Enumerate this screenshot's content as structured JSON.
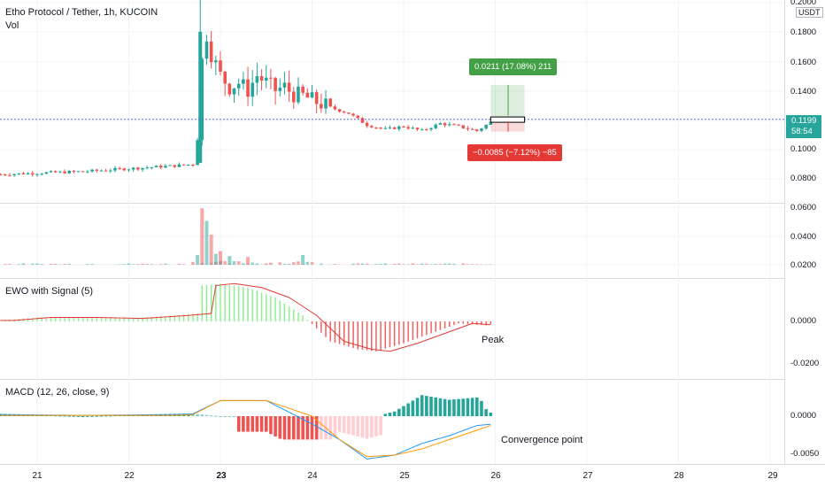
{
  "chart_header": {
    "symbol_line": "Etho Protocol / Tether, 1h, KUCOIN",
    "volume_label": "Vol",
    "currency_badge": "USDT"
  },
  "price_axis": {
    "ticks": [
      "0.2000",
      "0.1800",
      "0.1600",
      "0.1400",
      "0.1200",
      "0.1000",
      "0.0800",
      "0.0600",
      "0.0400",
      "0.0200"
    ],
    "last_price": "0.1199",
    "countdown": "58:54"
  },
  "ewo_axis": {
    "ticks": [
      "0.0000",
      "-0.0200"
    ]
  },
  "macd_axis": {
    "ticks": [
      "0.0000",
      "-0.0050"
    ]
  },
  "time_axis": {
    "ticks": [
      "21",
      "22",
      "23",
      "24",
      "25",
      "26",
      "27",
      "28",
      "29"
    ],
    "bold": "23"
  },
  "indicators": {
    "ewo_title": "EWO with Signal (5)",
    "macd_title": "MACD (12, 26, close, 9)"
  },
  "annotations": {
    "peak": "Peak",
    "convergence": "Convergence point"
  },
  "position_tool": {
    "target": "0.0211 (17.08%) 211",
    "stop": "−0.0085 (−7.12%) −85"
  },
  "colors": {
    "up": "#26a69a",
    "down": "#ef5350",
    "ewo_up": "#90ee90",
    "ewo_down": "#f06060",
    "macd_line": "#2196f3",
    "signal_line": "#ff9800",
    "target_tag": "#43a047",
    "stop_tag": "#e53935",
    "last_price_tag": "#26a69a"
  },
  "chart_data": [
    {
      "type": "candlestick",
      "title": "Etho Protocol / Tether, 1h, KUCOIN",
      "x": [
        "21",
        "22",
        "23",
        "24",
        "25",
        "26"
      ],
      "ylim": [
        0.07,
        0.2
      ],
      "close_path": [
        [
          20.6,
          0.082
        ],
        [
          21.0,
          0.083
        ],
        [
          21.5,
          0.084
        ],
        [
          22.0,
          0.086
        ],
        [
          22.5,
          0.088
        ],
        [
          22.7,
          0.089
        ],
        [
          22.75,
          0.11
        ],
        [
          22.8,
          0.16
        ],
        [
          22.85,
          0.178
        ],
        [
          22.9,
          0.165
        ],
        [
          23.0,
          0.15
        ],
        [
          23.1,
          0.142
        ],
        [
          23.2,
          0.145
        ],
        [
          23.3,
          0.14
        ],
        [
          23.4,
          0.15
        ],
        [
          23.5,
          0.145
        ],
        [
          23.6,
          0.14
        ],
        [
          23.7,
          0.142
        ],
        [
          23.8,
          0.137
        ],
        [
          23.9,
          0.136
        ],
        [
          24.0,
          0.133
        ],
        [
          24.2,
          0.128
        ],
        [
          24.4,
          0.124
        ],
        [
          24.6,
          0.116
        ],
        [
          24.8,
          0.113
        ],
        [
          25.0,
          0.115
        ],
        [
          25.2,
          0.112
        ],
        [
          25.4,
          0.117
        ],
        [
          25.6,
          0.115
        ],
        [
          25.8,
          0.112
        ],
        [
          26.0,
          0.1199
        ]
      ],
      "last_price": 0.1199
    },
    {
      "type": "bar",
      "title": "Vol",
      "ylim": [
        0,
        0.06
      ],
      "x": [
        22.75,
        22.8,
        22.85,
        22.9,
        22.95,
        23.0,
        23.1,
        23.3,
        23.9
      ],
      "values": [
        0.01,
        0.058,
        0.045,
        0.031,
        0.011,
        0.014,
        0.009,
        0.008,
        0.01
      ]
    },
    {
      "type": "bar",
      "title": "EWO with Signal (5)",
      "ylim": [
        -0.025,
        0.02
      ],
      "x": [
        20.6,
        21.0,
        21.5,
        22.0,
        22.5,
        22.75,
        22.8,
        23.0,
        23.3,
        23.6,
        23.9,
        24.2,
        24.5,
        24.7,
        25.0,
        25.3,
        25.6,
        25.9,
        26.0
      ],
      "values": [
        0.0005,
        0.002,
        0.002,
        0.0015,
        0.003,
        0.004,
        0.018,
        0.019,
        0.017,
        0.012,
        0.003,
        -0.01,
        -0.014,
        -0.015,
        -0.011,
        -0.006,
        -0.001,
        -0.002,
        -0.001
      ],
      "annotation": "Peak"
    },
    {
      "type": "line",
      "title": "MACD (12, 26, close, 9)",
      "ylim": [
        -0.006,
        0.002
      ],
      "x": [
        20.6,
        21.5,
        22.5,
        22.7,
        23.0,
        23.5,
        24.0,
        24.3,
        24.6,
        24.9,
        25.2,
        25.5,
        25.8,
        26.0
      ],
      "series": [
        {
          "values": [
            0.0002,
            0.0001,
            0.0002,
            0.0003,
            0.002,
            0.002,
            -0.001,
            -0.003,
            -0.0055,
            -0.005,
            -0.0035,
            -0.0025,
            -0.0012,
            -0.001
          ]
        },
        {
          "values": [
            0.0001,
            0.0001,
            0.0001,
            0.0002,
            0.002,
            0.002,
            0.0,
            -0.003,
            -0.0052,
            -0.005,
            -0.0042,
            -0.003,
            -0.0018,
            -0.001
          ]
        }
      ],
      "annotation": "Convergence point"
    }
  ]
}
